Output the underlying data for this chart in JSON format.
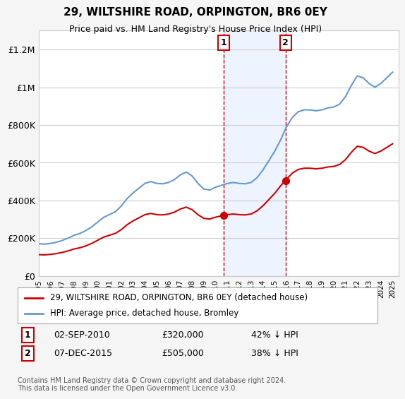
{
  "title": "29, WILTSHIRE ROAD, ORPINGTON, BR6 0EY",
  "subtitle": "Price paid vs. HM Land Registry's House Price Index (HPI)",
  "ylabel_ticks": [
    "£0",
    "£200K",
    "£400K",
    "£600K",
    "£800K",
    "£1M",
    "£1.2M"
  ],
  "ytick_vals": [
    0,
    200000,
    400000,
    600000,
    800000,
    1000000,
    1200000
  ],
  "ylim": [
    0,
    1300000
  ],
  "xlim_start": 1995.0,
  "xlim_end": 2025.5,
  "sale1_x": 2010.67,
  "sale1_y": 320000,
  "sale1_label": "02-SEP-2010",
  "sale1_price": "£320,000",
  "sale1_pct": "42% ↓ HPI",
  "sale2_x": 2015.92,
  "sale2_y": 505000,
  "sale2_label": "07-DEC-2015",
  "sale2_price": "£505,000",
  "sale2_pct": "38% ↓ HPI",
  "line_color_red": "#cc0000",
  "line_color_blue": "#6699cc",
  "shade_color": "#cce0ff",
  "marker_color": "#cc0000",
  "vline_color": "#cc0000",
  "background_color": "#f5f5f5",
  "plot_bg": "#ffffff",
  "grid_color": "#cccccc",
  "legend_line1": "29, WILTSHIRE ROAD, ORPINGTON, BR6 0EY (detached house)",
  "legend_line2": "HPI: Average price, detached house, Bromley",
  "footnote": "Contains HM Land Registry data © Crown copyright and database right 2024.\nThis data is licensed under the Open Government Licence v3.0."
}
